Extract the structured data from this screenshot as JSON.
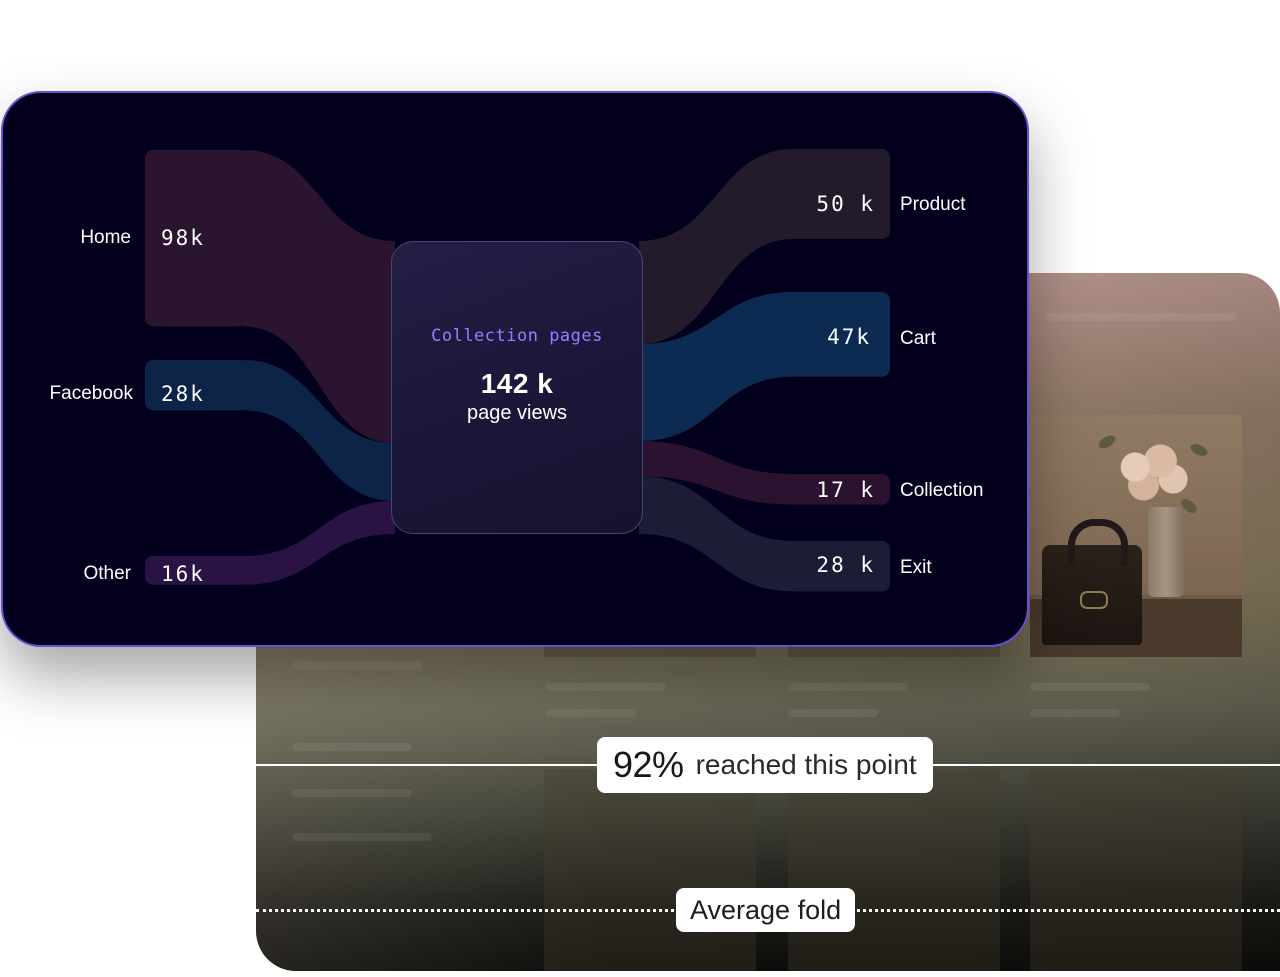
{
  "chart_data": {
    "type": "sankey",
    "center": {
      "label": "Collection pages",
      "value": "142 k",
      "unit": "page views"
    },
    "sources": [
      {
        "name": "Home",
        "display": "98k",
        "value": 98,
        "color": "#2b1430"
      },
      {
        "name": "Facebook",
        "display": "28k",
        "value": 28,
        "color": "#0c2447"
      },
      {
        "name": "Other",
        "display": "16k",
        "value": 16,
        "color": "#2a1245"
      }
    ],
    "targets": [
      {
        "name": "Product",
        "display": "50 k",
        "value": 50,
        "color": "#231a2c"
      },
      {
        "name": "Cart",
        "display": "47k",
        "value": 47,
        "color": "#0d2a52"
      },
      {
        "name": "Collection",
        "display": "17 k",
        "value": 17,
        "color": "#2a1230"
      },
      {
        "name": "Exit",
        "display": "28 k",
        "value": 28,
        "color": "#1c1c36"
      }
    ]
  },
  "heatmap": {
    "reach_percent": "92%",
    "reach_text": "reached this point",
    "fold_label": "Average fold"
  }
}
